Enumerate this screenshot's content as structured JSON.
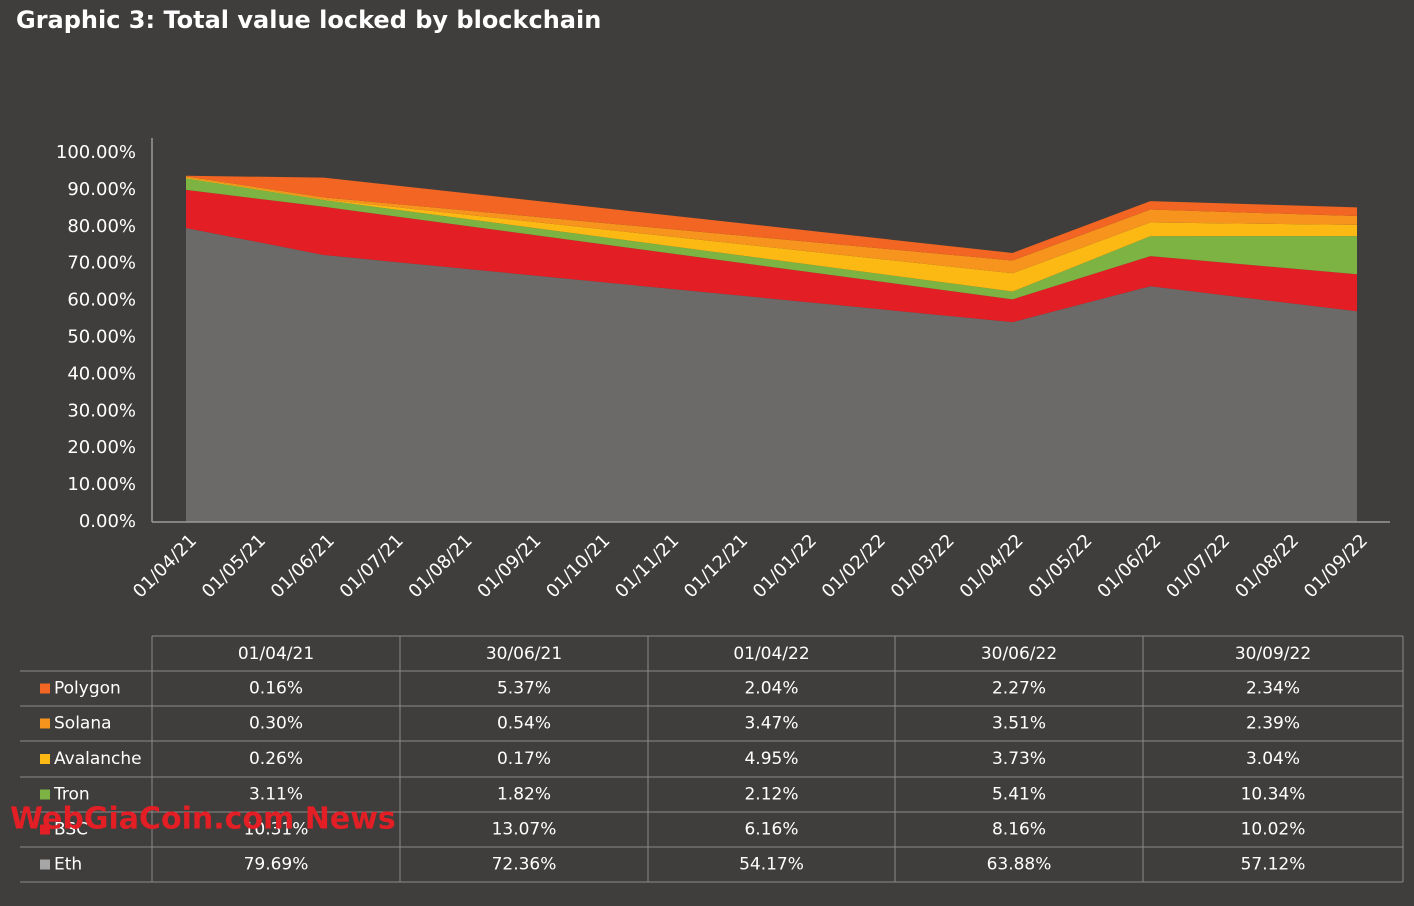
{
  "chart_data": {
    "type": "stacked_area",
    "title": "Graphic 3: Total value locked by blockchain",
    "categories": [
      "01/04/21",
      "01/05/21",
      "01/06/21",
      "01/07/21",
      "01/08/21",
      "01/09/21",
      "01/10/21",
      "01/11/21",
      "01/12/21",
      "01/01/22",
      "01/02/22",
      "01/03/22",
      "01/04/22",
      "01/05/22",
      "01/06/22",
      "01/07/22",
      "01/08/22",
      "01/09/22"
    ],
    "x": [
      "01/04/21",
      "01/06/21",
      "01/04/22",
      "01/06/22",
      "01/09/22"
    ],
    "series": [
      {
        "name": "Eth",
        "color": "#6c6a68",
        "legend_color": "#a6a6a6",
        "values": [
          79.69,
          72.36,
          54.17,
          63.88,
          57.12
        ]
      },
      {
        "name": "BSC",
        "color": "#e31e24",
        "values": [
          10.31,
          13.07,
          6.16,
          8.16,
          10.02
        ]
      },
      {
        "name": "Tron",
        "color": "#7cb342",
        "values": [
          3.11,
          1.82,
          2.12,
          5.41,
          10.34
        ]
      },
      {
        "name": "Avalanche",
        "color": "#fdb913",
        "values": [
          0.26,
          0.17,
          4.95,
          3.73,
          3.04
        ]
      },
      {
        "name": "Solana",
        "color": "#f7941d",
        "values": [
          0.3,
          0.54,
          3.47,
          3.51,
          2.39
        ]
      },
      {
        "name": "Polygon",
        "color": "#f26522",
        "values": [
          0.16,
          5.37,
          2.04,
          2.27,
          2.34
        ]
      }
    ],
    "ylim": [
      0,
      100
    ],
    "yticks": [
      {
        "value": 0,
        "label": "0.00%"
      },
      {
        "value": 10,
        "label": "10.00%"
      },
      {
        "value": 20,
        "label": "20.00%"
      },
      {
        "value": 30,
        "label": "30.00%"
      },
      {
        "value": 40,
        "label": "40.00%"
      },
      {
        "value": 50,
        "label": "50.00%"
      },
      {
        "value": 60,
        "label": "60.00%"
      },
      {
        "value": 70,
        "label": "70.00%"
      },
      {
        "value": 80,
        "label": "80.00%"
      },
      {
        "value": 90,
        "label": "90.00%"
      },
      {
        "value": 100,
        "label": "100.00%"
      }
    ],
    "grid": false
  },
  "table": {
    "header": [
      "01/04/21",
      "30/06/21",
      "01/04/22",
      "30/06/22",
      "30/09/22"
    ],
    "rows": [
      [
        "0.16%",
        "5.37%",
        "2.04%",
        "2.27%",
        "2.34%"
      ],
      [
        "0.30%",
        "0.54%",
        "3.47%",
        "3.51%",
        "2.39%"
      ],
      [
        "0.26%",
        "0.17%",
        "4.95%",
        "3.73%",
        "3.04%"
      ],
      [
        "3.11%",
        "1.82%",
        "2.12%",
        "5.41%",
        "10.34%"
      ],
      [
        "10.31%",
        "13.07%",
        "6.16%",
        "8.16%",
        "10.02%"
      ],
      [
        "79.69%",
        "72.36%",
        "54.17%",
        "63.88%",
        "57.12%"
      ]
    ]
  },
  "watermark": "WebGiaCoin.com News"
}
